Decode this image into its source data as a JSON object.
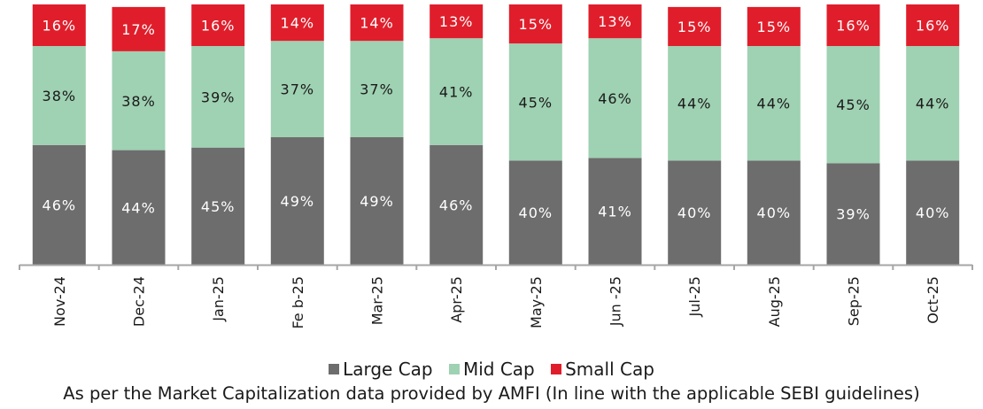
{
  "chart_data": {
    "type": "bar",
    "stacked": true,
    "percent_stacked": true,
    "title": "",
    "xlabel": "",
    "ylabel": "",
    "ylim": [
      0,
      100
    ],
    "grid": false,
    "legend_position": "bottom",
    "categories": [
      "Nov-24",
      "Dec-24",
      "Jan-25",
      "Feb-25",
      "Mar-25",
      "Apr-25",
      "May-25",
      "Jun-25",
      "Jul-25",
      "Aug-25",
      "Sep-25",
      "Oct-25"
    ],
    "tick_labels": [
      "Nov-24",
      "Dec-24",
      "Jan-25",
      "Fe b-25",
      "Mar-25",
      "Apr-25",
      "May-25",
      "Jun -25",
      "Jul-25",
      "Aug-25",
      "Sep-25",
      "Oct-25"
    ],
    "series": [
      {
        "name": "Large Cap",
        "color": "#6d6d6d",
        "label_color": "#ffffff",
        "values": [
          46,
          44,
          45,
          49,
          49,
          46,
          40,
          41,
          40,
          40,
          39,
          40
        ]
      },
      {
        "name": "Mid Cap",
        "color": "#9fd1b3",
        "label_color": "#1a1a1a",
        "values": [
          38,
          38,
          39,
          37,
          37,
          41,
          45,
          46,
          44,
          44,
          45,
          44
        ]
      },
      {
        "name": "Small Cap",
        "color": "#e01e2b",
        "label_color": "#ffffff",
        "values": [
          16,
          17,
          16,
          14,
          14,
          13,
          15,
          13,
          15,
          15,
          16,
          16
        ]
      }
    ],
    "value_suffix": "%",
    "axis_color": "#a6a6a6"
  },
  "legend": {
    "items": [
      {
        "label": "Large Cap",
        "color": "#6d6d6d"
      },
      {
        "label": "Mid Cap",
        "color": "#9fd1b3"
      },
      {
        "label": "Small Cap",
        "color": "#e01e2b"
      }
    ]
  },
  "footnote": "As per the Market Capitalization data provided by AMFI (In line with the applicable SEBI guidelines)"
}
